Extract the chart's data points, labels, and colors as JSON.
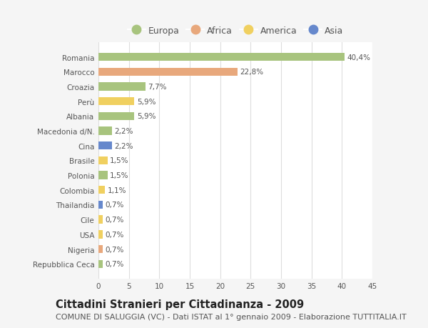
{
  "countries": [
    "Romania",
    "Marocco",
    "Croazia",
    "Perù",
    "Albania",
    "Macedonia d/N.",
    "Cina",
    "Brasile",
    "Polonia",
    "Colombia",
    "Thailandia",
    "Cile",
    "USA",
    "Nigeria",
    "Repubblica Ceca"
  ],
  "values": [
    40.4,
    22.8,
    7.7,
    5.9,
    5.9,
    2.2,
    2.2,
    1.5,
    1.5,
    1.1,
    0.7,
    0.7,
    0.7,
    0.7,
    0.7
  ],
  "labels": [
    "40,4%",
    "22,8%",
    "7,7%",
    "5,9%",
    "5,9%",
    "2,2%",
    "2,2%",
    "1,5%",
    "1,5%",
    "1,1%",
    "0,7%",
    "0,7%",
    "0,7%",
    "0,7%",
    "0,7%"
  ],
  "continents": [
    "Europa",
    "Africa",
    "Europa",
    "America",
    "Europa",
    "Europa",
    "Asia",
    "America",
    "Europa",
    "America",
    "Asia",
    "America",
    "America",
    "Africa",
    "Europa"
  ],
  "continent_colors": {
    "Europa": "#a8c47e",
    "Africa": "#e8a87c",
    "America": "#f0d060",
    "Asia": "#6688cc"
  },
  "legend_order": [
    "Europa",
    "Africa",
    "America",
    "Asia"
  ],
  "title": "Cittadini Stranieri per Cittadinanza - 2009",
  "subtitle": "COMUNE DI SALUGGIA (VC) - Dati ISTAT al 1° gennaio 2009 - Elaborazione TUTTITALIA.IT",
  "xlim": [
    0,
    45
  ],
  "xticks": [
    0,
    5,
    10,
    15,
    20,
    25,
    30,
    35,
    40,
    45
  ],
  "background_color": "#f5f5f5",
  "plot_bg_color": "#ffffff",
  "grid_color": "#dddddd",
  "title_fontsize": 10.5,
  "subtitle_fontsize": 8,
  "label_fontsize": 7.5,
  "tick_fontsize": 7.5,
  "legend_fontsize": 9
}
